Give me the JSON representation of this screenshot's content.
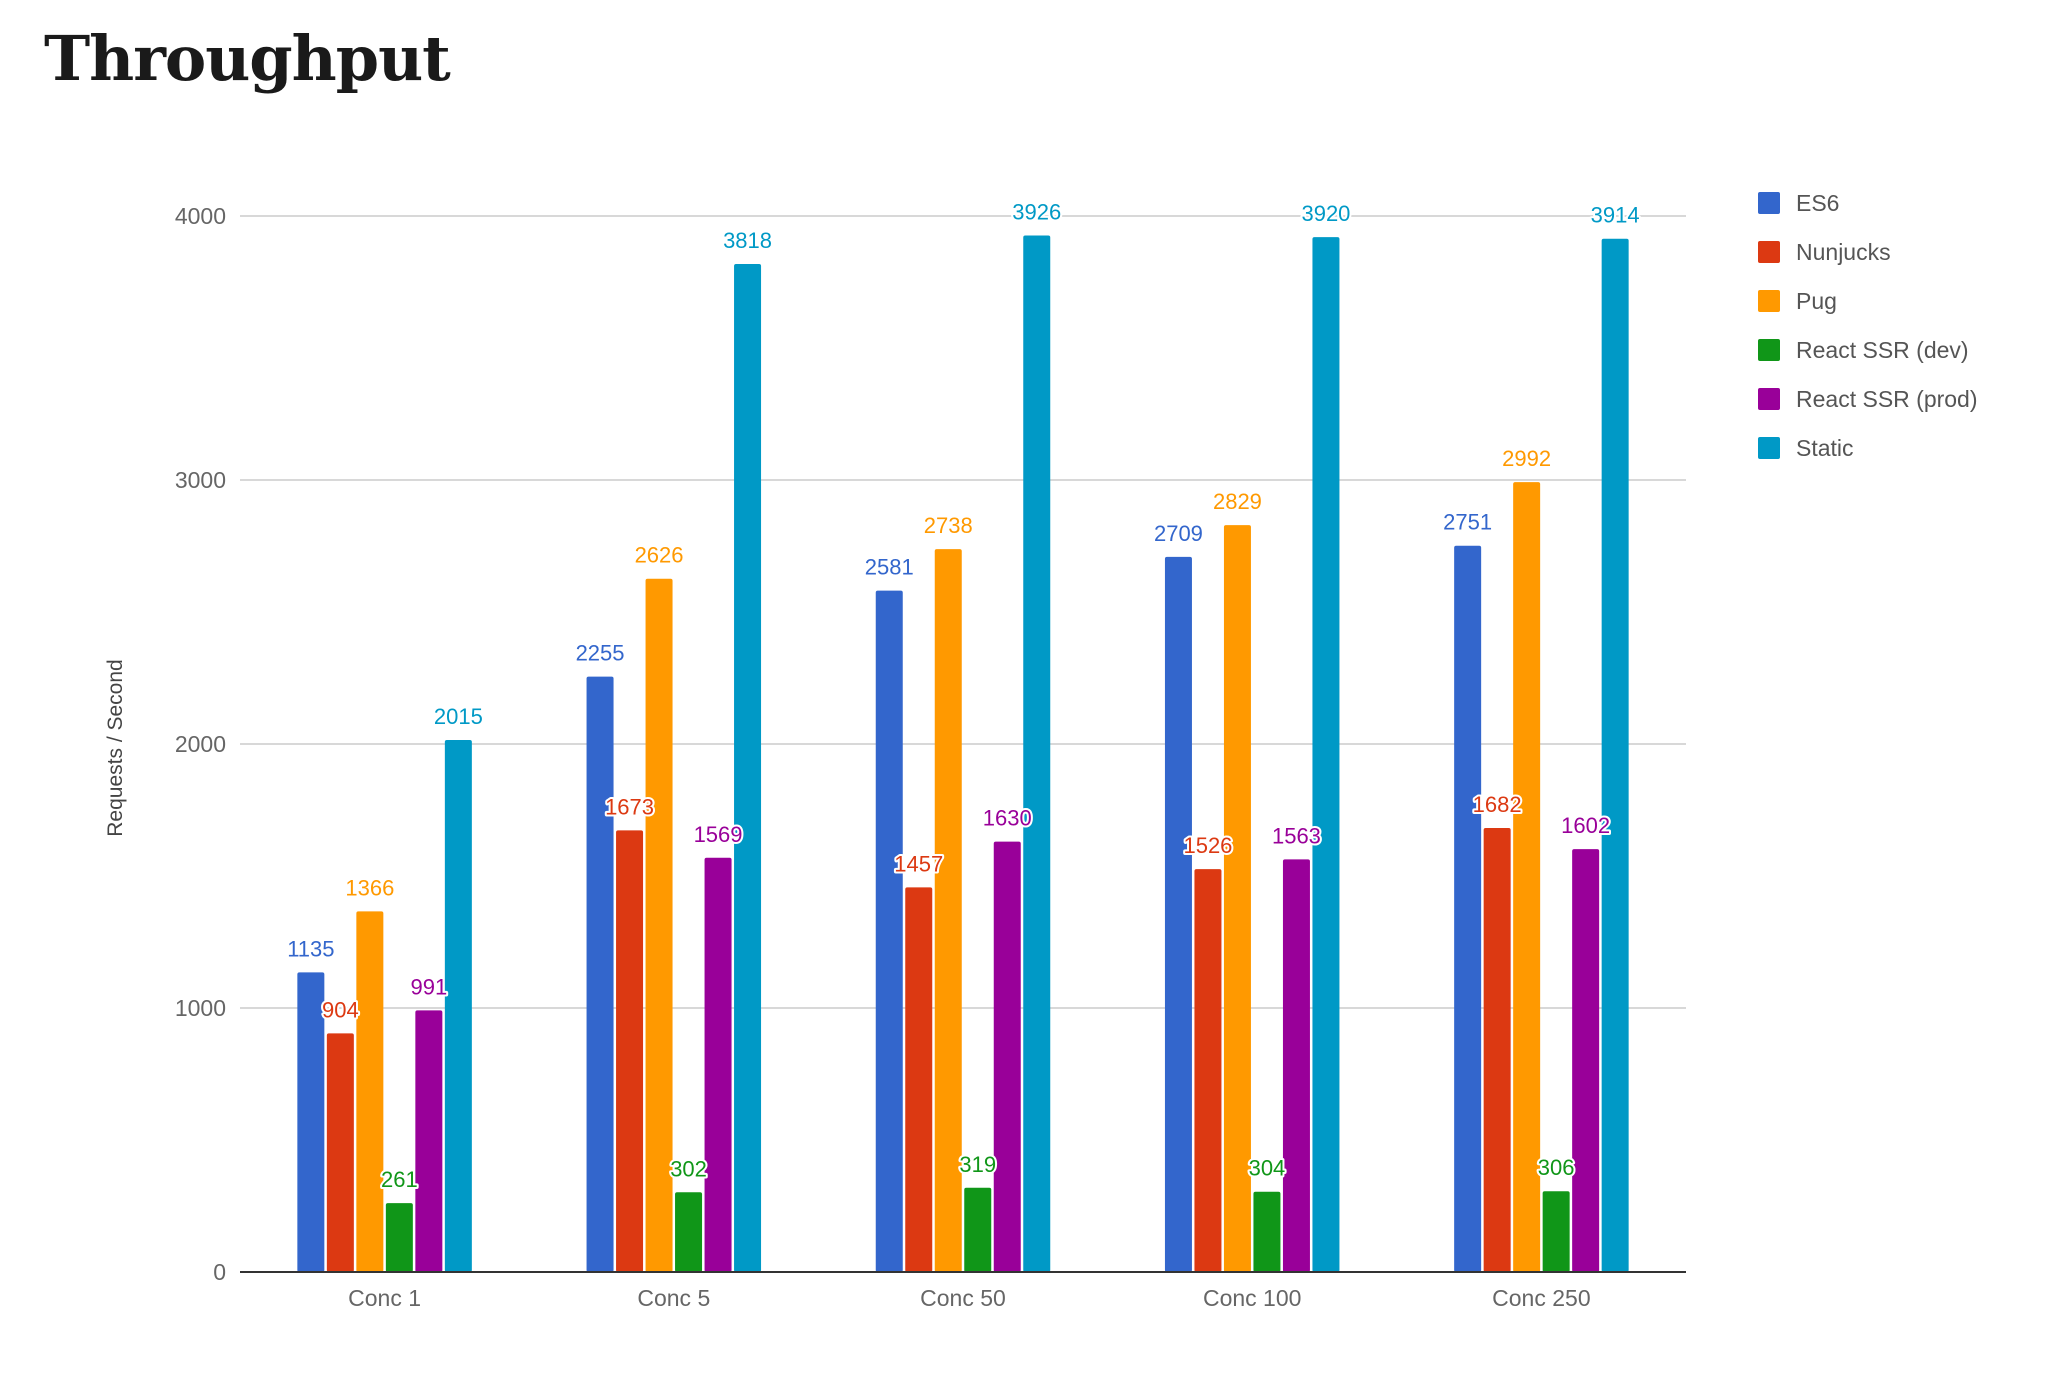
{
  "page": {
    "title": "Throughput"
  },
  "chart_data": {
    "type": "bar",
    "title": "",
    "xlabel": "",
    "ylabel": "Requests / Second",
    "ylim": [
      0,
      4000
    ],
    "yticks": [
      0,
      1000,
      2000,
      3000,
      4000
    ],
    "grid": true,
    "legend_position": "right",
    "categories": [
      "Conc 1",
      "Conc 5",
      "Conc 50",
      "Conc 100",
      "Conc 250"
    ],
    "series": [
      {
        "name": "ES6",
        "color": "#3366cc",
        "values": [
          1135,
          2255,
          2581,
          2709,
          2751
        ]
      },
      {
        "name": "Nunjucks",
        "color": "#dc3912",
        "values": [
          904,
          1673,
          1457,
          1526,
          1682
        ]
      },
      {
        "name": "Pug",
        "color": "#ff9900",
        "values": [
          1366,
          2626,
          2738,
          2829,
          2992
        ]
      },
      {
        "name": "React SSR (dev)",
        "color": "#109618",
        "values": [
          261,
          302,
          319,
          304,
          306
        ]
      },
      {
        "name": "React SSR (prod)",
        "color": "#990099",
        "values": [
          991,
          1569,
          1630,
          1563,
          1602
        ]
      },
      {
        "name": "Static",
        "color": "#0099c6",
        "values": [
          2015,
          3818,
          3926,
          3920,
          3914
        ]
      }
    ]
  }
}
